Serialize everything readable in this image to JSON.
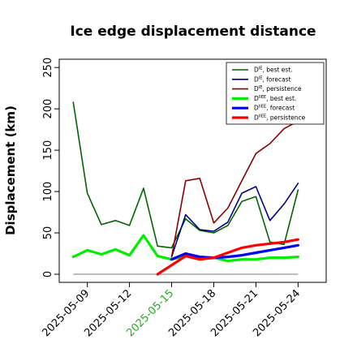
{
  "chart_data": {
    "type": "line",
    "title": "Ice edge displacement distance",
    "ylabel": "Displacement (km)",
    "xlabel": "",
    "ylim": [
      0,
      260
    ],
    "yticks": [
      0,
      50,
      100,
      150,
      200,
      250
    ],
    "xlim": [
      "2025-05-07",
      "2025-05-26"
    ],
    "xticks": [
      "2025-05-09",
      "2025-05-12",
      "2025-05-15",
      "2025-05-18",
      "2025-05-21",
      "2025-05-24"
    ],
    "highlight_xtick": "2025-05-15",
    "highlight_color": "#22aa22",
    "grid": false,
    "legend_position": "top-right",
    "zero_line": true,
    "series": [
      {
        "name": "DIE, best est.",
        "color": "#006400",
        "width": 1.6,
        "points": [
          [
            "2025-05-08",
            208
          ],
          [
            "2025-05-09",
            98
          ],
          [
            "2025-05-10",
            60
          ],
          [
            "2025-05-11",
            65
          ],
          [
            "2025-05-12",
            59
          ],
          [
            "2025-05-13",
            104
          ],
          [
            "2025-05-14",
            34
          ],
          [
            "2025-05-15",
            32
          ],
          [
            "2025-05-16",
            67
          ],
          [
            "2025-05-17",
            53
          ],
          [
            "2025-05-18",
            50
          ],
          [
            "2025-05-19",
            59
          ],
          [
            "2025-05-20",
            88
          ],
          [
            "2025-05-21",
            94
          ],
          [
            "2025-05-22",
            39
          ],
          [
            "2025-05-23",
            36
          ],
          [
            "2025-05-24",
            102
          ]
        ]
      },
      {
        "name": "DIE, forecast",
        "color": "#00008b",
        "width": 1.6,
        "points": [
          [
            "2025-05-15",
            21
          ],
          [
            "2025-05-16",
            72
          ],
          [
            "2025-05-17",
            54
          ],
          [
            "2025-05-18",
            52
          ],
          [
            "2025-05-19",
            63
          ],
          [
            "2025-05-20",
            98
          ],
          [
            "2025-05-21",
            106
          ],
          [
            "2025-05-22",
            65
          ],
          [
            "2025-05-23",
            85
          ],
          [
            "2025-05-24",
            110
          ]
        ]
      },
      {
        "name": "DIE, persistence",
        "color": "#8b0000",
        "width": 1.6,
        "points": [
          [
            "2025-05-15",
            21
          ],
          [
            "2025-05-16",
            113
          ],
          [
            "2025-05-17",
            116
          ],
          [
            "2025-05-18",
            62
          ],
          [
            "2025-05-19",
            80
          ],
          [
            "2025-05-20",
            113
          ],
          [
            "2025-05-21",
            146
          ],
          [
            "2025-05-22",
            158
          ],
          [
            "2025-05-23",
            176
          ],
          [
            "2025-05-24",
            185
          ]
        ]
      },
      {
        "name": "DIIEE, best est.",
        "color": "#00ee00",
        "width": 3.2,
        "points": [
          [
            "2025-05-08",
            21
          ],
          [
            "2025-05-09",
            29
          ],
          [
            "2025-05-10",
            24
          ],
          [
            "2025-05-11",
            30
          ],
          [
            "2025-05-12",
            23
          ],
          [
            "2025-05-13",
            47
          ],
          [
            "2025-05-14",
            22
          ],
          [
            "2025-05-15",
            18
          ],
          [
            "2025-05-16",
            22
          ],
          [
            "2025-05-17",
            19
          ],
          [
            "2025-05-18",
            20
          ],
          [
            "2025-05-19",
            16
          ],
          [
            "2025-05-20",
            18
          ],
          [
            "2025-05-21",
            18
          ],
          [
            "2025-05-22",
            20
          ],
          [
            "2025-05-23",
            20
          ],
          [
            "2025-05-24",
            21
          ]
        ]
      },
      {
        "name": "DIIEE, forecast",
        "color": "#0000ff",
        "width": 3.2,
        "points": [
          [
            "2025-05-15",
            18
          ],
          [
            "2025-05-16",
            25
          ],
          [
            "2025-05-17",
            21
          ],
          [
            "2025-05-18",
            20
          ],
          [
            "2025-05-19",
            21
          ],
          [
            "2025-05-20",
            23
          ],
          [
            "2025-05-21",
            26
          ],
          [
            "2025-05-22",
            29
          ],
          [
            "2025-05-23",
            32
          ],
          [
            "2025-05-24",
            35
          ]
        ]
      },
      {
        "name": "DIIEE, persistence",
        "color": "#ff0000",
        "width": 3.2,
        "points": [
          [
            "2025-05-14",
            0
          ],
          [
            "2025-05-15",
            11
          ],
          [
            "2025-05-16",
            22
          ],
          [
            "2025-05-17",
            18
          ],
          [
            "2025-05-18",
            20
          ],
          [
            "2025-05-19",
            26
          ],
          [
            "2025-05-20",
            32
          ],
          [
            "2025-05-21",
            35
          ],
          [
            "2025-05-22",
            37
          ],
          [
            "2025-05-23",
            39
          ],
          [
            "2025-05-24",
            42
          ]
        ]
      }
    ],
    "legend": {
      "entries": [
        {
          "main": "D",
          "sup": "IE",
          "rest": ", best est.",
          "color": "#006400",
          "width": 1.6
        },
        {
          "main": "D",
          "sup": "IE",
          "rest": ", forecast",
          "color": "#00008b",
          "width": 1.6
        },
        {
          "main": "D",
          "sup": "IE",
          "rest": ", persistence",
          "color": "#8b0000",
          "width": 1.6
        },
        {
          "main": "D",
          "sup": "IIEE",
          "rest": ", best est.",
          "color": "#00ee00",
          "width": 3.2
        },
        {
          "main": "D",
          "sup": "IIEE",
          "rest": ", forecast",
          "color": "#0000ff",
          "width": 3.2
        },
        {
          "main": "D",
          "sup": "IIEE",
          "rest": ", persistence",
          "color": "#ff0000",
          "width": 3.2
        }
      ]
    }
  }
}
